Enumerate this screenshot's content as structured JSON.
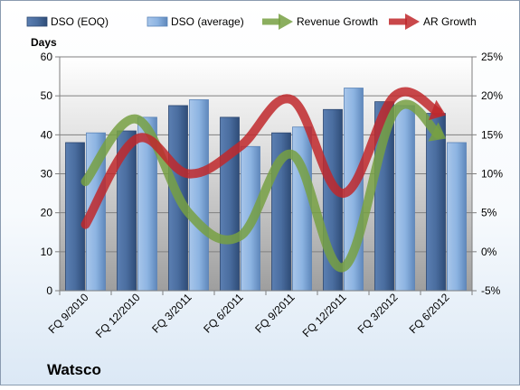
{
  "chart_data": {
    "type": "bar",
    "title": "Watsco",
    "ylabel_left": "Days",
    "categories": [
      "FQ 9/2010",
      "FQ 12/2010",
      "FQ 3/2011",
      "FQ 6/2011",
      "FQ 9/2011",
      "FQ 12/2011",
      "FQ 3/2012",
      "FQ 6/2012"
    ],
    "series": [
      {
        "name": "DSO (EOQ)",
        "type": "bar",
        "axis": "left",
        "color": "#4a6d9f",
        "values": [
          38,
          41,
          47.5,
          44.5,
          40.5,
          46.5,
          48.5,
          45.5
        ]
      },
      {
        "name": "DSO (average)",
        "type": "bar",
        "axis": "left",
        "color": "#8db4e2",
        "values": [
          40.5,
          44.5,
          49,
          37,
          42,
          52,
          47.5,
          38
        ]
      },
      {
        "name": "Revenue Growth",
        "type": "line",
        "axis": "right",
        "color": "#77a043",
        "values": [
          9,
          17,
          5,
          2,
          12.5,
          -2,
          18,
          14.5
        ]
      },
      {
        "name": "AR Growth",
        "type": "line",
        "axis": "right",
        "color": "#c0282b",
        "values": [
          3.5,
          14.5,
          10,
          13.5,
          19.5,
          7.5,
          20,
          17.5
        ]
      }
    ],
    "ylim_left": [
      0,
      60
    ],
    "yticks_left": [
      "0",
      "10",
      "20",
      "30",
      "40",
      "50",
      "60"
    ],
    "ylim_right": [
      -5,
      25
    ],
    "yticks_right": [
      "-5%",
      "0%",
      "5%",
      "10%",
      "15%",
      "20%",
      "25%"
    ],
    "grid": true,
    "legend_position": "top"
  }
}
